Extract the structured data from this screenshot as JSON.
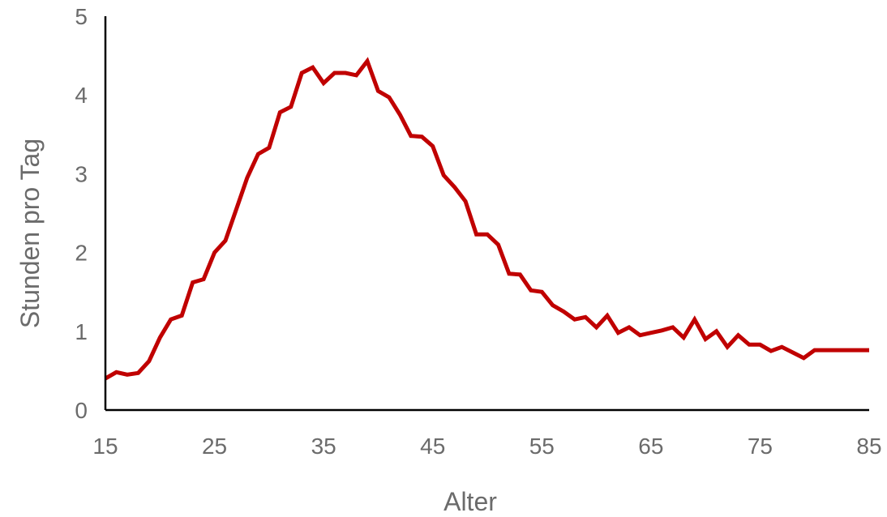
{
  "chart_data": {
    "type": "line",
    "title": "",
    "xlabel": "Alter",
    "ylabel": "Stunden pro Tag",
    "xlim": [
      15,
      85
    ],
    "ylim": [
      0,
      5
    ],
    "xticks": [
      "15",
      "25",
      "35",
      "45",
      "55",
      "65",
      "75",
      "85"
    ],
    "yticks": [
      "0",
      "1",
      "2",
      "3",
      "4",
      "5"
    ],
    "grid": false,
    "legend": "none",
    "series": [
      {
        "color": "#c00000",
        "x": [
          15,
          16,
          17,
          18,
          19,
          20,
          21,
          22,
          23,
          24,
          25,
          26,
          27,
          28,
          29,
          30,
          31,
          32,
          33,
          34,
          35,
          36,
          37,
          38,
          39,
          40,
          41,
          42,
          43,
          44,
          45,
          46,
          47,
          48,
          49,
          50,
          51,
          52,
          53,
          54,
          55,
          56,
          57,
          58,
          59,
          60,
          61,
          62,
          63,
          64,
          65,
          66,
          67,
          68,
          69,
          70,
          71,
          72,
          73,
          74,
          75,
          76,
          77,
          78,
          79,
          80,
          81,
          82,
          83,
          84,
          85
        ],
        "y": [
          0.4,
          0.48,
          0.45,
          0.47,
          0.62,
          0.92,
          1.15,
          1.2,
          1.62,
          1.66,
          2.0,
          2.15,
          2.55,
          2.95,
          3.25,
          3.33,
          3.78,
          3.85,
          4.28,
          4.35,
          4.15,
          4.28,
          4.28,
          4.25,
          4.43,
          4.05,
          3.97,
          3.75,
          3.48,
          3.47,
          3.35,
          2.98,
          2.83,
          2.65,
          2.23,
          2.23,
          2.1,
          1.73,
          1.72,
          1.52,
          1.5,
          1.33,
          1.25,
          1.15,
          1.18,
          1.05,
          1.2,
          0.98,
          1.05,
          0.95,
          0.98,
          1.01,
          1.05,
          0.92,
          1.15,
          0.9,
          1.0,
          0.8,
          0.95,
          0.83,
          0.83,
          0.75,
          0.8,
          0.73,
          0.66,
          0.76,
          0.76,
          0.76,
          0.76,
          0.76,
          0.76
        ]
      }
    ]
  }
}
